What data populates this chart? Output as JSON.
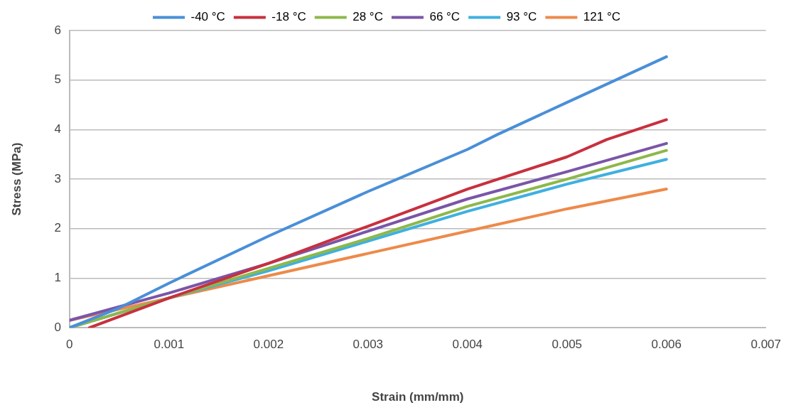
{
  "chart_data": {
    "type": "line",
    "xlabel": "Strain (mm/mm)",
    "ylabel": "Stress (MPa)",
    "xlim": [
      0,
      0.007
    ],
    "xticks": [
      0,
      0.001,
      0.002,
      0.003,
      0.004,
      0.005,
      0.006,
      0.007
    ],
    "ylim": [
      0,
      6
    ],
    "yticks": [
      0,
      1,
      2,
      3,
      4,
      5,
      6
    ],
    "grid": "y",
    "legend": "top",
    "marker": "none",
    "line_style": "solid",
    "series": [
      {
        "name": "-40 °C",
        "color": "#4a8fd8",
        "x": [
          0,
          0.0005,
          0.001,
          0.002,
          0.003,
          0.004,
          0.0043,
          0.005,
          0.006
        ],
        "values": [
          0,
          0.4,
          0.9,
          1.85,
          2.75,
          3.6,
          3.9,
          4.55,
          5.47
        ]
      },
      {
        "name": "-18 °C",
        "color": "#c8303e",
        "x": [
          0.0002,
          0.001,
          0.002,
          0.003,
          0.004,
          0.005,
          0.0054,
          0.006
        ],
        "values": [
          0,
          0.6,
          1.3,
          2.05,
          2.8,
          3.45,
          3.8,
          4.2
        ]
      },
      {
        "name": "28 °C",
        "color": "#8db84a",
        "x": [
          0,
          0.001,
          0.002,
          0.003,
          0.004,
          0.005,
          0.006
        ],
        "values": [
          0,
          0.6,
          1.2,
          1.8,
          2.45,
          3,
          3.58
        ]
      },
      {
        "name": "66 °C",
        "color": "#7a55a8",
        "x": [
          0,
          0.001,
          0.002,
          0.003,
          0.004,
          0.005,
          0.006
        ],
        "values": [
          0.15,
          0.7,
          1.3,
          1.95,
          2.6,
          3.15,
          3.72
        ]
      },
      {
        "name": "93 °C",
        "color": "#3fb0e0",
        "x": [
          0,
          0.001,
          0.002,
          0.003,
          0.004,
          0.005,
          0.006
        ],
        "values": [
          0,
          0.6,
          1.15,
          1.75,
          2.35,
          2.9,
          3.4
        ]
      },
      {
        "name": "121 °C",
        "color": "#ee8a4a",
        "x": [
          0,
          0.001,
          0.002,
          0.003,
          0.004,
          0.005,
          0.006
        ],
        "values": [
          0.15,
          0.6,
          1.05,
          1.5,
          1.95,
          2.4,
          2.8
        ]
      }
    ]
  }
}
